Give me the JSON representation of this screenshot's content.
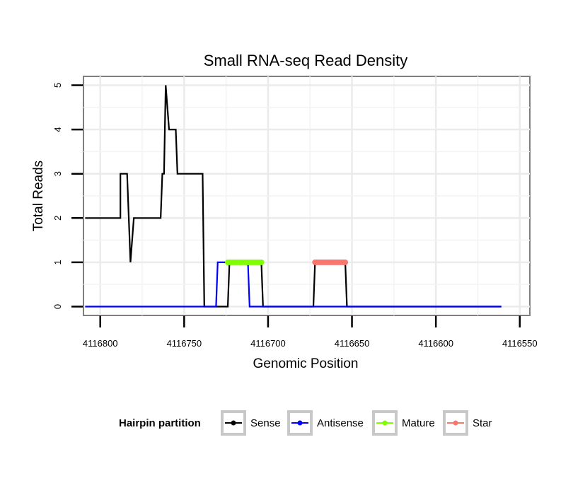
{
  "chart_data": {
    "type": "line",
    "title": "Small RNA-seq Read Density",
    "xlabel": "Genomic Position",
    "ylabel": "Total Reads",
    "x_reversed": true,
    "xlim": [
      4116810,
      4116544
    ],
    "ylim": [
      -0.2,
      5.2
    ],
    "x_ticks": [
      4116800,
      4116750,
      4116700,
      4116650,
      4116600,
      4116550
    ],
    "x_tick_labels": [
      "4116800",
      "4116750",
      "4116700",
      "4116650",
      "4116600",
      "4116550"
    ],
    "y_ticks": [
      0,
      1,
      2,
      3,
      4,
      5
    ],
    "y_tick_labels": [
      "0",
      "1",
      "2",
      "3",
      "4",
      "5"
    ],
    "grid": true,
    "legend": {
      "title": "Hairpin partition",
      "placement": "bottom",
      "entries": [
        "Sense",
        "Antisense",
        "Mature",
        "Star"
      ]
    },
    "series": [
      {
        "name": "Sense",
        "color": "#000000",
        "style": "line",
        "points": [
          [
            4116809,
            2
          ],
          [
            4116788,
            2
          ],
          [
            4116788,
            3
          ],
          [
            4116784,
            3
          ],
          [
            4116782,
            1
          ],
          [
            4116780,
            2
          ],
          [
            4116764,
            2
          ],
          [
            4116763,
            3
          ],
          [
            4116762,
            3
          ],
          [
            4116761,
            5
          ],
          [
            4116759,
            4
          ],
          [
            4116755,
            4
          ],
          [
            4116754,
            3
          ],
          [
            4116739,
            3
          ],
          [
            4116738,
            0
          ],
          [
            4116724,
            0
          ],
          [
            4116723,
            1
          ],
          [
            4116704,
            1
          ],
          [
            4116703,
            0
          ],
          [
            4116673,
            0
          ],
          [
            4116672,
            1
          ],
          [
            4116654,
            1
          ],
          [
            4116653,
            0
          ],
          [
            4116561,
            0
          ]
        ]
      },
      {
        "name": "Antisense",
        "color": "#0000ff",
        "style": "line",
        "points": [
          [
            4116809,
            0
          ],
          [
            4116731,
            0
          ],
          [
            4116730,
            1
          ],
          [
            4116712,
            1
          ],
          [
            4116711,
            0
          ],
          [
            4116561,
            0
          ]
        ]
      },
      {
        "name": "Mature",
        "color": "#7fff00",
        "style": "points",
        "x_range": [
          4116724,
          4116704
        ],
        "y": 1
      },
      {
        "name": "Star",
        "color": "#f8766d",
        "style": "points",
        "x_range": [
          4116672,
          4116654
        ],
        "y": 1
      }
    ]
  }
}
